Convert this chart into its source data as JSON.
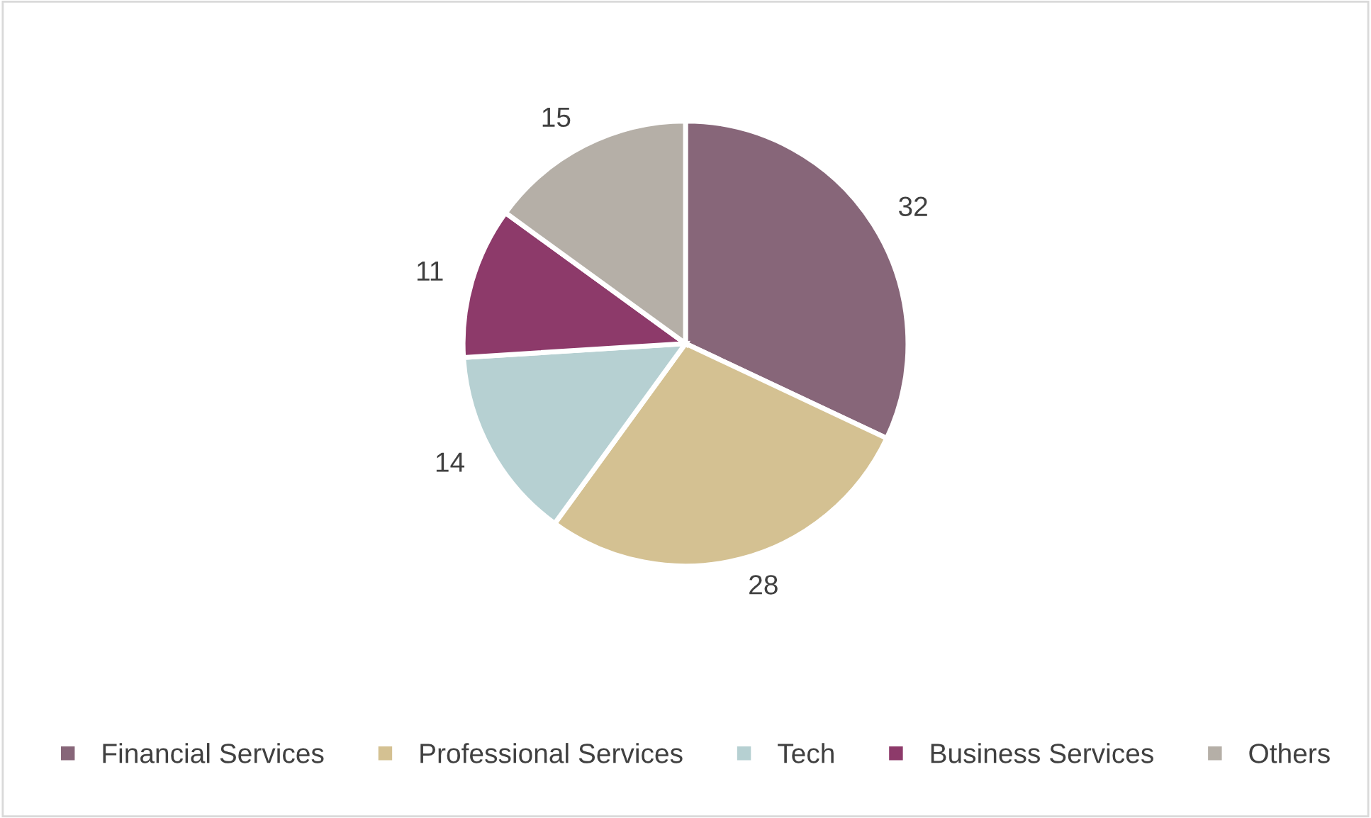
{
  "chart_data": {
    "type": "pie",
    "categories": [
      "Financial Services",
      "Professional Services",
      "Tech",
      "Business Services",
      "Others"
    ],
    "values": [
      32,
      28,
      14,
      11,
      15
    ],
    "colors": [
      "#876679",
      "#d4c192",
      "#b6d0d2",
      "#8d3a6a",
      "#b5afa7"
    ],
    "data_labels": true,
    "legend": "bottom"
  }
}
